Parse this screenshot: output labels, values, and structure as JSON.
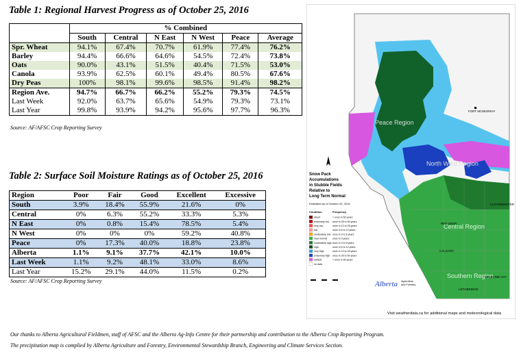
{
  "table1": {
    "title": "Table 1: Regional Harvest Progress as of October 25, 2016",
    "group_header": "% Combined",
    "columns": [
      "South",
      "Central",
      "N East",
      "N West",
      "Peace",
      "Average"
    ],
    "rows": [
      {
        "label": "Spr. Wheat",
        "values": [
          "94.1%",
          "67.4%",
          "70.7%",
          "61.9%",
          "77.4%",
          "76.2%"
        ]
      },
      {
        "label": "Barley",
        "values": [
          "94.4%",
          "66.6%",
          "64.6%",
          "54.5%",
          "72.4%",
          "73.8%"
        ]
      },
      {
        "label": "Oats",
        "values": [
          "90.0%",
          "43.1%",
          "51.5%",
          "40.4%",
          "71.5%",
          "53.0%"
        ]
      },
      {
        "label": "Canola",
        "values": [
          "93.9%",
          "62.5%",
          "60.1%",
          "49.4%",
          "80.5%",
          "67.6%"
        ]
      },
      {
        "label": "Dry Peas",
        "values": [
          "100%",
          "98.1%",
          "99.6%",
          "98.5%",
          "91.4%",
          "98.2%"
        ]
      },
      {
        "label": "Region Ave.",
        "values": [
          "94.7%",
          "66.7%",
          "66.2%",
          "55.2%",
          "79.3%",
          "74.5%"
        ]
      },
      {
        "label": "Last Week",
        "values": [
          "92.0%",
          "63.7%",
          "65.6%",
          "54.9%",
          "79.3%",
          "73.1%"
        ]
      },
      {
        "label": "Last Year",
        "values": [
          "99.8%",
          "93.9%",
          "94.2%",
          "95.6%",
          "97.7%",
          "96.3%"
        ]
      }
    ],
    "source": "Source: AF/AFSC Crop Reporting Survey"
  },
  "table2": {
    "title": "Table 2: Surface Soil Moisture Ratings as of October 25, 2016",
    "columns": [
      "Region",
      "Poor",
      "Fair",
      "Good",
      "Excellent",
      "Excessive"
    ],
    "rows": [
      {
        "label": "South",
        "values": [
          "3.9%",
          "18.4%",
          "55.9%",
          "21.6%",
          "0%"
        ]
      },
      {
        "label": "Central",
        "values": [
          "0%",
          "6.3%",
          "55.2%",
          "33.3%",
          "5.3%"
        ]
      },
      {
        "label": "N East",
        "values": [
          "0%",
          "0.8%",
          "15.4%",
          "78.5%",
          "5.4%"
        ]
      },
      {
        "label": "N West",
        "values": [
          "0%",
          "0%",
          "0%",
          "59.2%",
          "40.8%"
        ]
      },
      {
        "label": "Peace",
        "values": [
          "0%",
          "17.3%",
          "40.0%",
          "18.8%",
          "23.8%"
        ]
      },
      {
        "label": "Alberta",
        "values": [
          "1.1%",
          "9.1%",
          "37.7%",
          "42.1%",
          "10.0%"
        ]
      },
      {
        "label": "Last Week",
        "values": [
          "1.1%",
          "9.2%",
          "48.1%",
          "33.0%",
          "8.6%"
        ]
      },
      {
        "label": "Last Year",
        "values": [
          "15.2%",
          "29.1%",
          "44.0%",
          "11.5%",
          "0.2%"
        ]
      }
    ],
    "source": "Source: AF/AFSC Crop Reporting Survey"
  },
  "map": {
    "title_lines": [
      "Snow Pack",
      "Accumulations",
      "in Stubble Fields",
      "Relative to",
      "Long Term Normal"
    ],
    "date": "Estimated as of October 25, 2016",
    "legend_headers": {
      "condition": "Condition",
      "frequency": "Frequency"
    },
    "legend": [
      {
        "color": "#7a0000",
        "condition": "driest",
        "frequency": "< once in 50 years"
      },
      {
        "color": "#c00000",
        "condition": "extremely low",
        "frequency": "once in 25 to 50 years"
      },
      {
        "color": "#ff5050",
        "condition": "very low",
        "frequency": "once in 12 to 25 years"
      },
      {
        "color": "#ff9a9a",
        "condition": "low",
        "frequency": "once in 6 to 12 years"
      },
      {
        "color": "#f5a623",
        "condition": "moderately low",
        "frequency": "once in 3 to 6 years"
      },
      {
        "color": "#3cb54a",
        "condition": "near normal",
        "frequency": "once in 3 years"
      },
      {
        "color": "#1f7a2e",
        "condition": "moderately high",
        "frequency": "once in 3 to 6 years"
      },
      {
        "color": "#0a4f1c",
        "condition": "high",
        "frequency": "once in 6 to 12 years"
      },
      {
        "color": "#2aa6e0",
        "condition": "very high",
        "frequency": "once in 12 to 25 years"
      },
      {
        "color": "#1a3fbf",
        "condition": "extremely high",
        "frequency": "once in 25 to 50 years"
      },
      {
        "color": "#e060e8",
        "condition": "wettest",
        "frequency": "> once in 50 years"
      },
      {
        "color": "#ffffff",
        "condition": "no data",
        "frequency": ""
      }
    ],
    "region_labels": [
      "Peace Region",
      "North West Region",
      "Central Region",
      "Southern Region"
    ],
    "city_labels": [
      "FORT MCMURRAY",
      "LLOYDMINSTER",
      "RED DEER",
      "CALGARY",
      "MEDICINE HAT",
      "LETHBRIDGE"
    ],
    "footer": "Visit weatherdata.ca for additional maps and meteorological data",
    "logo_word": "Alberta",
    "logo_sub": [
      "Agriculture",
      "and Forestry"
    ]
  },
  "notes": [
    "Our thanks to Alberta Agricultural Fieldmen, staff of AFSC and the Alberta Ag-Info Centre for their partnership and contribution to the Alberta Crop Reporting Program.",
    "The precipitation map is complied by Alberta Agriculture and Forestry, Environmental Stewardship Branch, Engineering and Climate Services Section."
  ]
}
